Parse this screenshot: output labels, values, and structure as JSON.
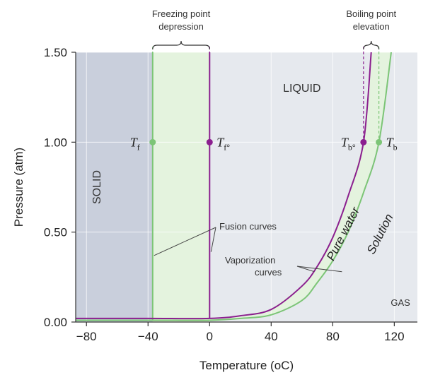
{
  "chart_data": {
    "type": "line",
    "xlabel": "Temperature (oC)",
    "ylabel": "Pressure (atm)",
    "xlim": [
      -87,
      135
    ],
    "ylim": [
      0,
      1.5
    ],
    "xticks": [
      "−80",
      "−40",
      "0",
      "40",
      "80",
      "120"
    ],
    "xtick_values": [
      -80,
      -40,
      0,
      40,
      80,
      120
    ],
    "yticks": [
      "0.00",
      "0.50",
      "1.00",
      "1.50"
    ],
    "ytick_values": [
      0,
      0.5,
      1.0,
      1.5
    ],
    "grid": true,
    "colors": {
      "pure_water": "#8b1f8f",
      "solution": "#7cc576",
      "solid_region": "#c9cfdc",
      "liquid_gas_region": "#e6e9ee",
      "depression_band": "#e4f3de"
    },
    "series": [
      {
        "name": "Pure water",
        "color": "#8b1f8f",
        "fusion_x": 0,
        "vaporization": {
          "x": [
            -87,
            -40,
            0,
            20,
            40,
            60,
            70,
            80,
            90,
            100,
            105
          ],
          "y": [
            0.02,
            0.02,
            0.02,
            0.035,
            0.07,
            0.2,
            0.31,
            0.47,
            0.7,
            1.0,
            1.5
          ]
        }
      },
      {
        "name": "Solution",
        "color": "#7cc576",
        "fusion_x": -37,
        "vaporization": {
          "x": [
            -87,
            -37,
            0,
            20,
            40,
            60,
            70,
            80,
            90,
            100,
            110,
            118
          ],
          "y": [
            0.01,
            0.01,
            0.01,
            0.02,
            0.04,
            0.12,
            0.22,
            0.34,
            0.5,
            0.72,
            1.0,
            1.5
          ]
        }
      }
    ],
    "points": [
      {
        "x": -37,
        "y": 1.0,
        "symbol": "T",
        "sub": "f",
        "color": "#7cc576"
      },
      {
        "x": 0,
        "y": 1.0,
        "symbol": "T",
        "sub": "f°",
        "color": "#8b1f8f"
      },
      {
        "x": 100,
        "y": 1.0,
        "symbol": "T",
        "sub": "b°",
        "color": "#8b1f8f"
      },
      {
        "x": 110,
        "y": 1.0,
        "symbol": "T",
        "sub": "b",
        "color": "#7cc576"
      }
    ],
    "regions": {
      "solid": "SOLID",
      "liquid": "LIQUID",
      "gas": "GAS"
    },
    "curve_labels": {
      "pure_water": "Pure water",
      "solution": "Solution"
    },
    "annotations": {
      "freezing_line1": "Freezing point",
      "freezing_line2": "depression",
      "boiling_line1": "Boiling point",
      "boiling_line2": "elevation",
      "fusion": "Fusion curves",
      "vapor_line1": "Vaporization",
      "vapor_line2": "curves"
    }
  }
}
